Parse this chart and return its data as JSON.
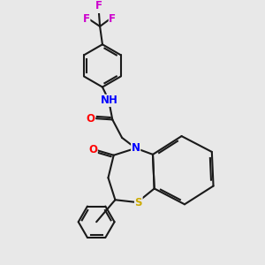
{
  "background_color": "#e8e8e8",
  "bond_color": "#1a1a1a",
  "bond_width": 1.5,
  "atom_colors": {
    "N": "#0000ff",
    "O": "#ff0000",
    "S": "#ccaa00",
    "H": "#008888",
    "F": "#cc00cc",
    "C": "#1a1a1a"
  },
  "figsize": [
    3.0,
    3.0
  ],
  "dpi": 100
}
